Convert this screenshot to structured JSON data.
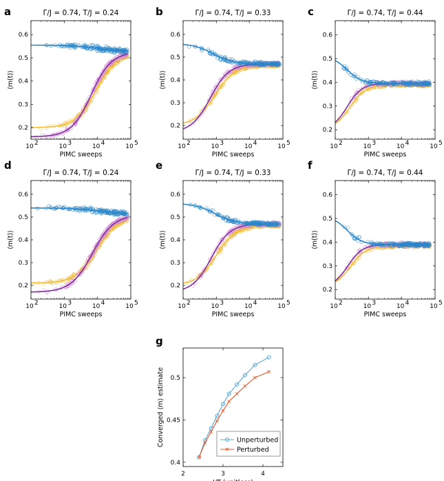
{
  "colors": {
    "blue": "#2a86c8",
    "yellow": "#f2be3c",
    "purple": "#7c2f9c",
    "pink": "#d58ed6",
    "orange": "#e8582a",
    "lightblue": "#5aa8d8"
  },
  "chart_data": [
    {
      "panel": "a",
      "type": "scatter",
      "title": "Γ/J = 0.74, T/J = 0.24",
      "xlabel": "PIMC sweeps",
      "ylabel": "⟨m(t)⟩",
      "xscale": "log",
      "xlim": [
        100,
        100000
      ],
      "ylim": [
        0.15,
        0.66
      ],
      "yticks": [
        0.2,
        0.3,
        0.4,
        0.5,
        0.6
      ],
      "ytick_labels": [
        "0.2",
        "0.3",
        "0.4",
        "0.5",
        "0.6"
      ],
      "xtick_labels": [
        "10",
        "10",
        "10",
        "10"
      ],
      "xtick_exps": [
        "2",
        "3",
        "4",
        "5"
      ],
      "series": [
        {
          "color": "blue",
          "x_start": 100,
          "x_end": 80000,
          "y0": 0.555,
          "y1": 0.525,
          "x_mid": 12000,
          "width": 0.45
        },
        {
          "color": "purple",
          "x_start": 100,
          "x_end": 80000,
          "y0": 0.16,
          "y1": 0.525,
          "x_mid": 6500,
          "width": 0.3
        },
        {
          "color": "yellow",
          "x_start": 100,
          "x_end": 80000,
          "y0": 0.2,
          "y1": 0.52,
          "x_mid": 9000,
          "width": 0.3
        }
      ]
    },
    {
      "panel": "b",
      "type": "scatter",
      "title": "Γ/J = 0.74, T/J = 0.33",
      "xlabel": "PIMC sweeps",
      "ylabel": "⟨m(t)⟩",
      "xscale": "log",
      "xlim": [
        100,
        100000
      ],
      "ylim": [
        0.14,
        0.66
      ],
      "yticks": [
        0.2,
        0.3,
        0.4,
        0.5,
        0.6
      ],
      "ytick_labels": [
        "0.2",
        "0.3",
        "0.4",
        "0.5",
        "0.6"
      ],
      "xtick_labels": [
        "10",
        "10",
        "10",
        "10"
      ],
      "xtick_exps": [
        "2",
        "3",
        "4",
        "5"
      ],
      "series": [
        {
          "color": "blue",
          "x_start": 100,
          "x_end": 80000,
          "y0": 0.56,
          "y1": 0.47,
          "x_mid": 800,
          "width": 0.3
        },
        {
          "color": "purple",
          "x_start": 100,
          "x_end": 80000,
          "y0": 0.17,
          "y1": 0.47,
          "x_mid": 650,
          "width": 0.28
        },
        {
          "color": "yellow",
          "x_start": 100,
          "x_end": 80000,
          "y0": 0.2,
          "y1": 0.465,
          "x_mid": 900,
          "width": 0.3
        }
      ]
    },
    {
      "panel": "c",
      "type": "scatter",
      "title": "Γ/J = 0.74, T/J = 0.44",
      "xlabel": "PIMC sweeps",
      "ylabel": "⟨m(t)⟩",
      "xscale": "log",
      "xlim": [
        100,
        100000
      ],
      "ylim": [
        0.16,
        0.66
      ],
      "yticks": [
        0.2,
        0.3,
        0.4,
        0.5,
        0.6
      ],
      "ytick_labels": [
        "0.2",
        "0.3",
        "0.4",
        "0.5",
        "0.6"
      ],
      "xtick_labels": [
        "10",
        "10",
        "10",
        "10"
      ],
      "xtick_exps": [
        "2",
        "3",
        "4",
        "5"
      ],
      "series": [
        {
          "color": "blue",
          "x_start": 100,
          "x_end": 70000,
          "y0": 0.51,
          "y1": 0.395,
          "x_mid": 230,
          "width": 0.22
        },
        {
          "color": "purple",
          "x_start": 100,
          "x_end": 70000,
          "y0": 0.2,
          "y1": 0.395,
          "x_mid": 230,
          "width": 0.22
        },
        {
          "color": "yellow",
          "x_start": 100,
          "x_end": 70000,
          "y0": 0.2,
          "y1": 0.39,
          "x_mid": 280,
          "width": 0.24
        }
      ]
    },
    {
      "panel": "d",
      "type": "scatter",
      "title": "Γ/J = 0.74, T/J = 0.24",
      "xlabel": "PIMC sweeps",
      "ylabel": "⟨m(t)⟩",
      "xscale": "log",
      "xlim": [
        100,
        100000
      ],
      "ylim": [
        0.14,
        0.66
      ],
      "yticks": [
        0.2,
        0.3,
        0.4,
        0.5,
        0.6
      ],
      "ytick_labels": [
        "0.2",
        "0.3",
        "0.4",
        "0.5",
        "0.6"
      ],
      "xtick_labels": [
        "10",
        "10",
        "10",
        "10"
      ],
      "xtick_exps": [
        "2",
        "3",
        "4",
        "5"
      ],
      "series": [
        {
          "color": "blue",
          "x_start": 100,
          "x_end": 80000,
          "y0": 0.54,
          "y1": 0.51,
          "x_mid": 14000,
          "width": 0.45
        },
        {
          "color": "purple",
          "x_start": 100,
          "x_end": 80000,
          "y0": 0.17,
          "y1": 0.51,
          "x_mid": 7000,
          "width": 0.32
        },
        {
          "color": "yellow",
          "x_start": 100,
          "x_end": 80000,
          "y0": 0.21,
          "y1": 0.505,
          "x_mid": 9500,
          "width": 0.32
        }
      ]
    },
    {
      "panel": "e",
      "type": "scatter",
      "title": "Γ/J = 0.74, T/J = 0.33",
      "xlabel": "PIMC sweeps",
      "ylabel": "⟨m(t)⟩",
      "xscale": "log",
      "xlim": [
        100,
        100000
      ],
      "ylim": [
        0.14,
        0.66
      ],
      "yticks": [
        0.2,
        0.3,
        0.4,
        0.5,
        0.6
      ],
      "ytick_labels": [
        "0.2",
        "0.3",
        "0.4",
        "0.5",
        "0.6"
      ],
      "xtick_labels": [
        "10",
        "10",
        "10",
        "10"
      ],
      "xtick_exps": [
        "2",
        "3",
        "4",
        "5"
      ],
      "series": [
        {
          "color": "blue",
          "x_start": 100,
          "x_end": 80000,
          "y0": 0.56,
          "y1": 0.47,
          "x_mid": 900,
          "width": 0.3
        },
        {
          "color": "purple",
          "x_start": 100,
          "x_end": 80000,
          "y0": 0.17,
          "y1": 0.47,
          "x_mid": 700,
          "width": 0.28
        },
        {
          "color": "yellow",
          "x_start": 100,
          "x_end": 80000,
          "y0": 0.2,
          "y1": 0.465,
          "x_mid": 1000,
          "width": 0.3
        }
      ]
    },
    {
      "panel": "f",
      "type": "scatter",
      "title": "Γ/J = 0.74, T/J = 0.44",
      "xlabel": "PIMC sweeps",
      "ylabel": "⟨m(t)⟩",
      "xscale": "log",
      "xlim": [
        100,
        100000
      ],
      "ylim": [
        0.16,
        0.66
      ],
      "yticks": [
        0.2,
        0.3,
        0.4,
        0.5,
        0.6
      ],
      "ytick_labels": [
        "0.2",
        "0.3",
        "0.4",
        "0.5",
        "0.6"
      ],
      "xtick_labels": [
        "10",
        "10",
        "10",
        "10"
      ],
      "xtick_exps": [
        "2",
        "3",
        "4",
        "5"
      ],
      "series": [
        {
          "color": "blue",
          "x_start": 100,
          "x_end": 70000,
          "y0": 0.51,
          "y1": 0.39,
          "x_mid": 230,
          "width": 0.22
        },
        {
          "color": "purple",
          "x_start": 100,
          "x_end": 70000,
          "y0": 0.21,
          "y1": 0.39,
          "x_mid": 240,
          "width": 0.22
        },
        {
          "color": "yellow",
          "x_start": 100,
          "x_end": 70000,
          "y0": 0.21,
          "y1": 0.385,
          "x_mid": 290,
          "width": 0.24
        }
      ]
    },
    {
      "panel": "g",
      "type": "line",
      "title": "",
      "xlabel": "J/T (unitless)",
      "ylabel": "Converged ⟨m⟩ estimate",
      "xlim": [
        2,
        4.5
      ],
      "ylim": [
        0.395,
        0.535
      ],
      "xticks": [
        2,
        3,
        4
      ],
      "xtick_labels": [
        "2",
        "3",
        "4"
      ],
      "yticks": [
        0.4,
        0.45,
        0.5
      ],
      "ytick_labels": [
        "0.4",
        "0.45",
        "0.5"
      ],
      "legend": "bottom-right",
      "series": [
        {
          "name": "Unperturbed",
          "color": "lightblue",
          "marker": "circle",
          "x": [
            2.4,
            2.55,
            2.7,
            2.85,
            3.0,
            3.15,
            3.35,
            3.55,
            3.8,
            4.15
          ],
          "y": [
            0.406,
            0.426,
            0.44,
            0.455,
            0.469,
            0.481,
            0.492,
            0.503,
            0.515,
            0.524
          ]
        },
        {
          "name": "Perturbed",
          "color": "orange",
          "marker": "x",
          "x": [
            2.4,
            2.55,
            2.7,
            2.85,
            3.0,
            3.15,
            3.35,
            3.55,
            3.8,
            4.15
          ],
          "y": [
            0.406,
            0.423,
            0.436,
            0.449,
            0.461,
            0.472,
            0.481,
            0.49,
            0.5,
            0.507
          ]
        }
      ]
    }
  ]
}
